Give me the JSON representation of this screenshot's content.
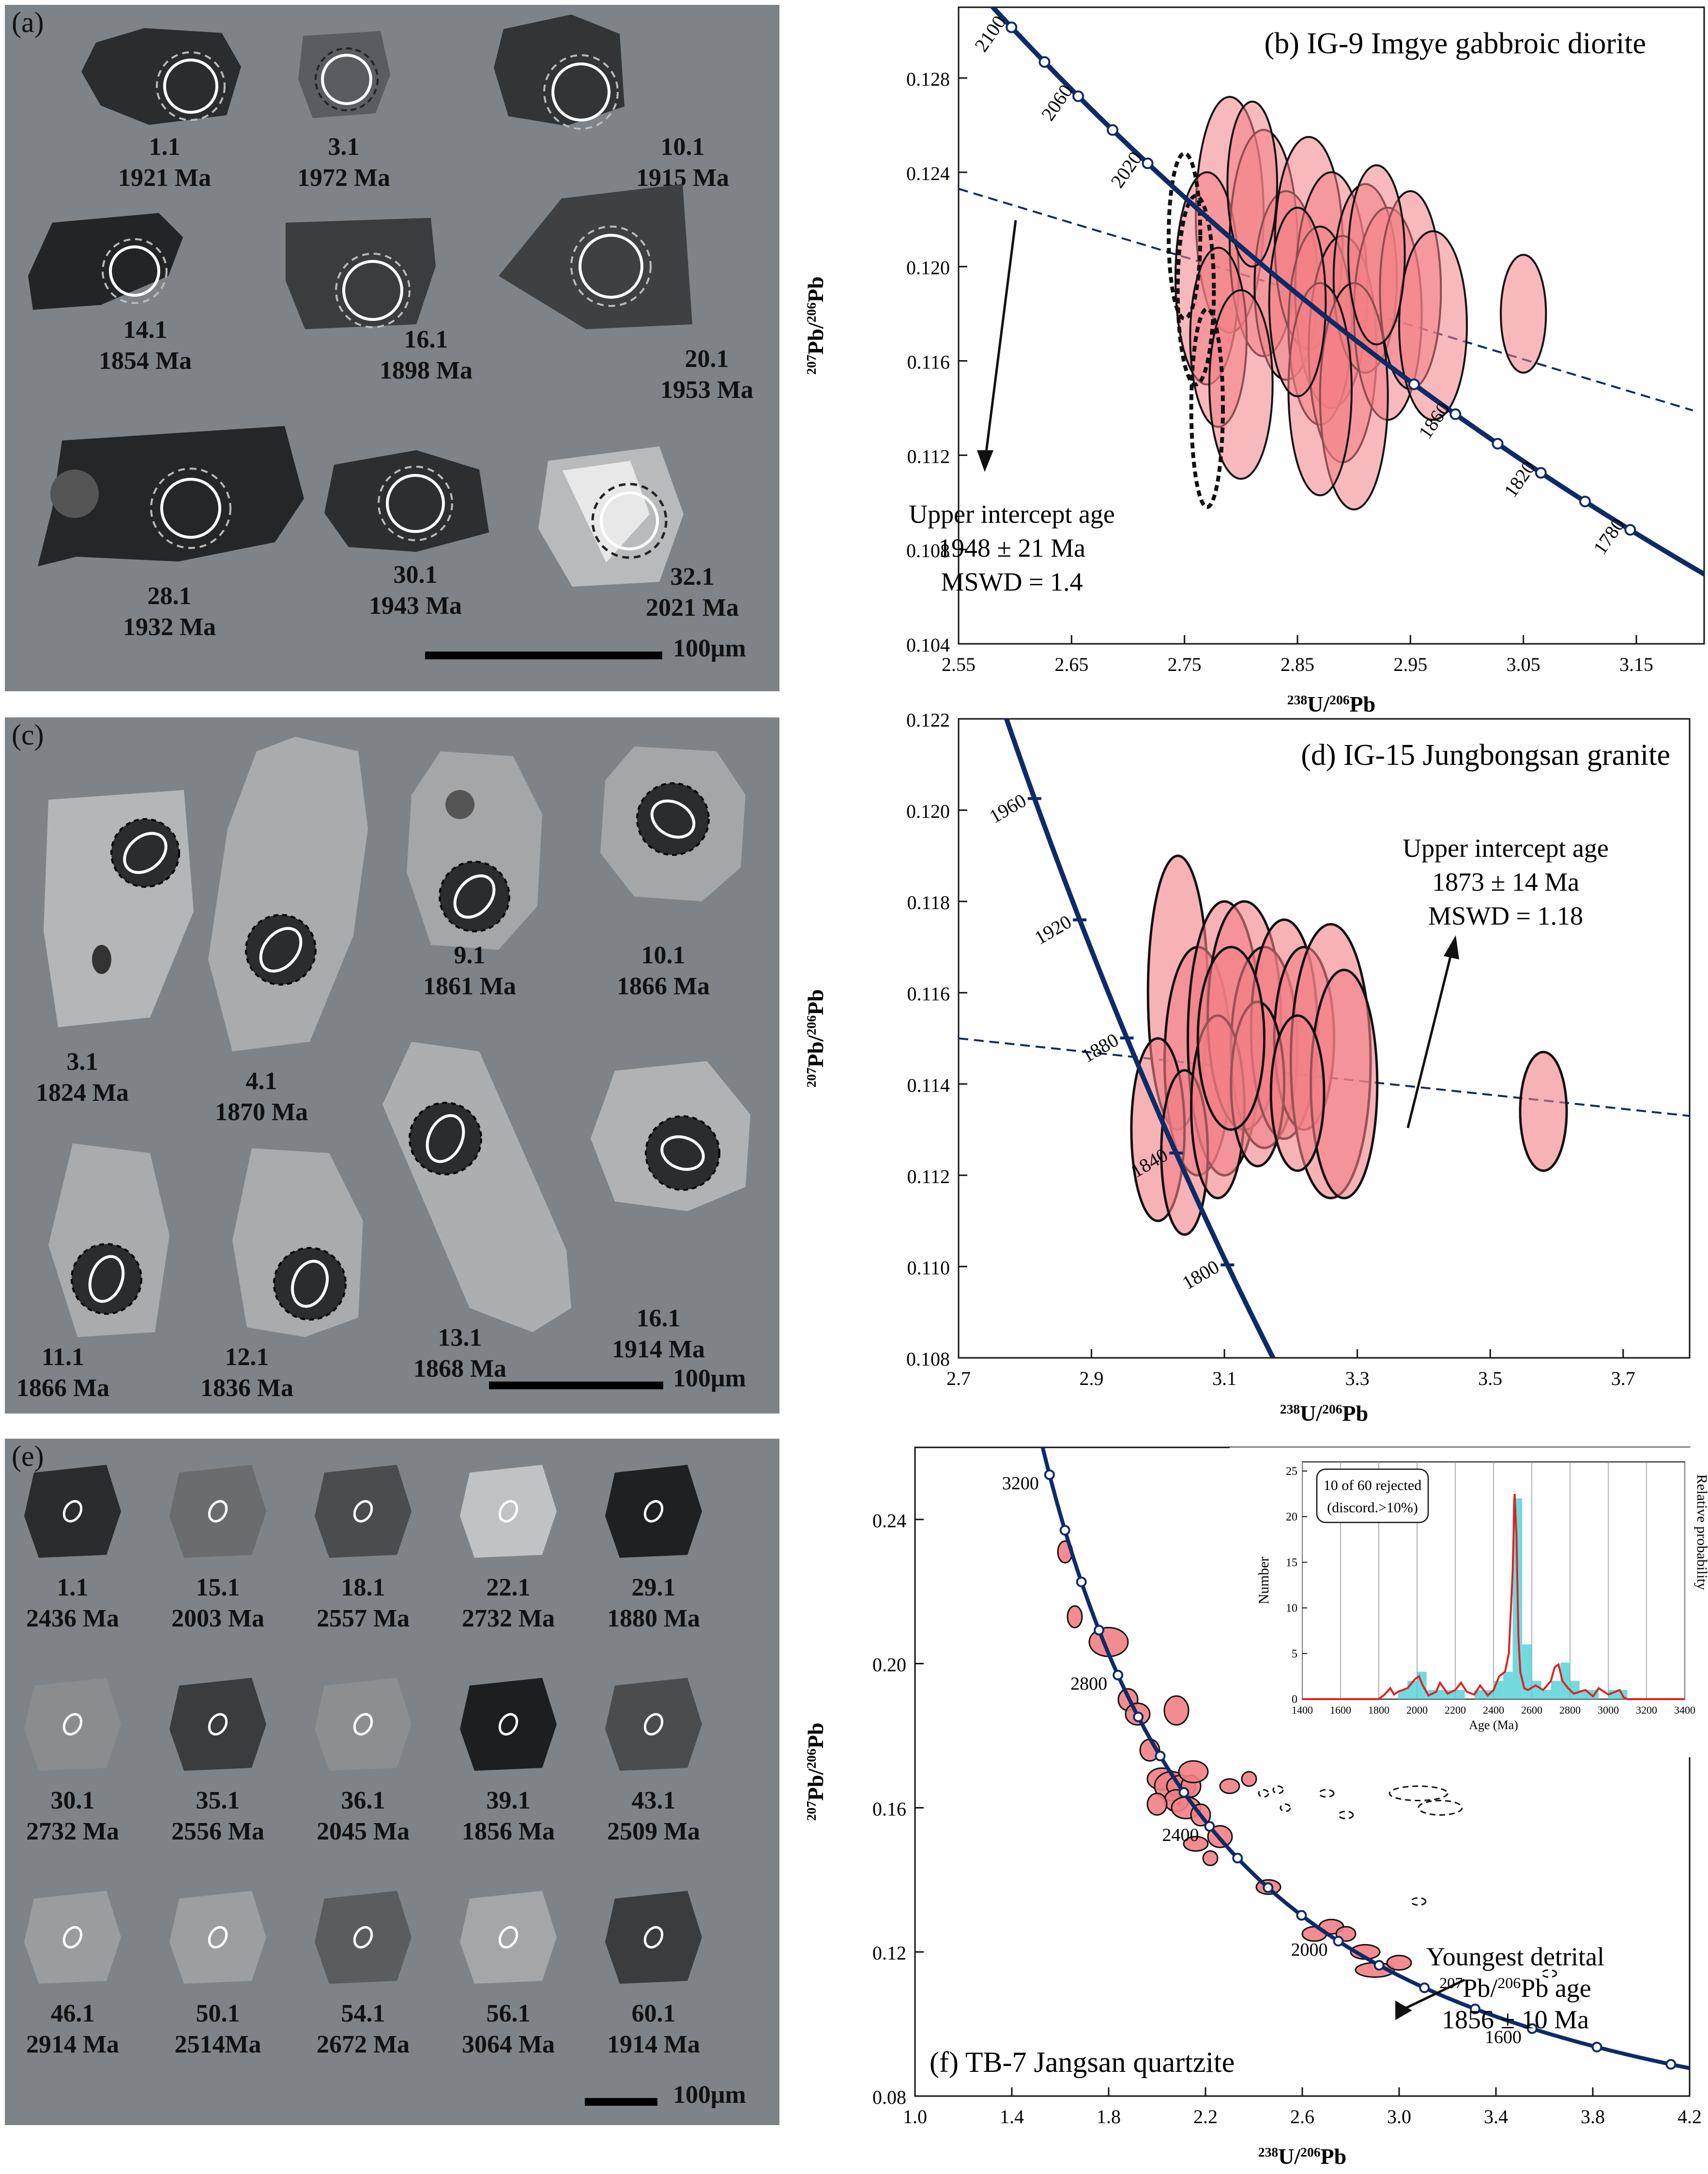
{
  "colors": {
    "curve": "#0d2b66",
    "ellipse_fill": "#f27f85",
    "ellipse_stroke": "#111111",
    "panel_bg": "#7d8386",
    "hist_bar": "#4fd0d6",
    "hist_line": "#e02020"
  },
  "panel_a": {
    "tag": "(a)",
    "scale": "100μm",
    "grains": [
      {
        "id": "1.1",
        "age": "1921 Ma"
      },
      {
        "id": "3.1",
        "age": "1972 Ma"
      },
      {
        "id": "10.1",
        "age": "1915 Ma"
      },
      {
        "id": "14.1",
        "age": "1854 Ma"
      },
      {
        "id": "16.1",
        "age": "1898 Ma"
      },
      {
        "id": "20.1",
        "age": "1953 Ma"
      },
      {
        "id": "28.1",
        "age": "1932 Ma"
      },
      {
        "id": "30.1",
        "age": "1943 Ma"
      },
      {
        "id": "32.1",
        "age": "2021 Ma"
      }
    ]
  },
  "panel_c": {
    "tag": "(c)",
    "scale": "100μm",
    "grains": [
      {
        "id": "3.1",
        "age": "1824  Ma"
      },
      {
        "id": "4.1",
        "age": "1870 Ma"
      },
      {
        "id": "9.1",
        "age": "1861 Ma"
      },
      {
        "id": "10.1",
        "age": "1866 Ma"
      },
      {
        "id": "11.1",
        "age": "1866 Ma"
      },
      {
        "id": "12.1",
        "age": "1836 Ma"
      },
      {
        "id": "13.1",
        "age": "1868 Ma"
      },
      {
        "id": "16.1",
        "age": "1914  Ma"
      }
    ]
  },
  "panel_e": {
    "tag": "(e)",
    "scale": "100μm",
    "grains": [
      {
        "id": "1.1",
        "age": "2436 Ma"
      },
      {
        "id": "15.1",
        "age": "2003 Ma"
      },
      {
        "id": "18.1",
        "age": "2557 Ma"
      },
      {
        "id": "22.1",
        "age": "2732 Ma"
      },
      {
        "id": "29.1",
        "age": "1880 Ma"
      },
      {
        "id": "30.1",
        "age": "2732 Ma"
      },
      {
        "id": "35.1",
        "age": "2556 Ma"
      },
      {
        "id": "36.1",
        "age": "2045 Ma"
      },
      {
        "id": "39.1",
        "age": "1856 Ma"
      },
      {
        "id": "43.1",
        "age": "2509 Ma"
      },
      {
        "id": "46.1",
        "age": "2914 Ma"
      },
      {
        "id": "50.1",
        "age": "2514Ma"
      },
      {
        "id": "54.1",
        "age": "2672 Ma"
      },
      {
        "id": "56.1",
        "age": "3064 Ma"
      },
      {
        "id": "60.1",
        "age": "1914 Ma"
      }
    ]
  },
  "chart_data": [
    {
      "type": "scatter",
      "panel": "b",
      "title": "(b) IG-9 Imgye gabbroic diorite",
      "xlabel": "238U/206Pb",
      "ylabel": "207Pb/206Pb",
      "xlim": [
        2.55,
        3.21
      ],
      "ylim": [
        0.104,
        0.131
      ],
      "xticks": [
        "2.55",
        "2.65",
        "2.75",
        "2.85",
        "2.95",
        "3.05",
        "3.15"
      ],
      "yticks": [
        "0.104",
        "0.108",
        "0.112",
        "0.116",
        "0.120",
        "0.124",
        "0.128"
      ],
      "concordia_ages": [
        "2100",
        "2060",
        "2020",
        "1860",
        "1820",
        "1780"
      ],
      "concordia_age_values": [
        2100,
        2080,
        2060,
        2040,
        2020,
        1880,
        1860,
        1840,
        1820,
        1800,
        1780
      ],
      "discordia": {
        "x": [
          2.55,
          3.2
        ],
        "y": [
          0.1233,
          0.1139
        ]
      },
      "annotation": {
        "line1": "Upper intercept age",
        "line2": "1948 ± 21 Ma",
        "line3": "MSWD = 1.4"
      },
      "points": [
        [
          2.79,
          0.1222,
          0.03,
          0.005
        ],
        [
          2.77,
          0.1195,
          0.028,
          0.0045
        ],
        [
          2.82,
          0.121,
          0.03,
          0.0048
        ],
        [
          2.84,
          0.1192,
          0.028,
          0.004
        ],
        [
          2.86,
          0.121,
          0.03,
          0.0045
        ],
        [
          2.88,
          0.119,
          0.032,
          0.005
        ],
        [
          2.87,
          0.1175,
          0.028,
          0.0042
        ],
        [
          2.89,
          0.1165,
          0.03,
          0.0048
        ],
        [
          2.91,
          0.1195,
          0.028,
          0.004
        ],
        [
          2.93,
          0.118,
          0.03,
          0.0045
        ],
        [
          2.95,
          0.119,
          0.027,
          0.0042
        ],
        [
          2.97,
          0.1175,
          0.03,
          0.004
        ],
        [
          2.78,
          0.117,
          0.025,
          0.0038
        ],
        [
          2.8,
          0.115,
          0.028,
          0.004
        ],
        [
          2.9,
          0.1145,
          0.03,
          0.0048
        ],
        [
          2.87,
          0.1148,
          0.028,
          0.0045
        ],
        [
          3.05,
          0.118,
          0.02,
          0.0025
        ],
        [
          2.85,
          0.1185,
          0.025,
          0.004
        ],
        [
          2.92,
          0.1205,
          0.025,
          0.0038
        ],
        [
          2.81,
          0.1235,
          0.022,
          0.0035
        ]
      ],
      "rejected": [
        [
          2.75,
          0.1213,
          0.014,
          0.0035
        ],
        [
          2.76,
          0.119,
          0.016,
          0.004
        ],
        [
          2.77,
          0.114,
          0.014,
          0.0042
        ]
      ]
    },
    {
      "type": "scatter",
      "panel": "d",
      "title": "(d) IG-15 Jungbongsan granite",
      "xlabel": "238U/206Pb",
      "ylabel": "207Pb/206Pb",
      "xlim": [
        2.7,
        3.8
      ],
      "ylim": [
        0.108,
        0.122
      ],
      "xticks": [
        "2.7",
        "2.9",
        "3.1",
        "3.3",
        "3.5",
        "3.7"
      ],
      "yticks": [
        "0.108",
        "0.110",
        "0.112",
        "0.114",
        "0.116",
        "0.118",
        "0.120",
        "0.122"
      ],
      "concordia_ages": [
        "1960",
        "1920",
        "1880",
        "1840",
        "1800"
      ],
      "concordia_age_values": [
        1960,
        1920,
        1880,
        1840,
        1800
      ],
      "discordia": {
        "x": [
          2.7,
          3.8
        ],
        "y": [
          0.115,
          0.1133
        ]
      },
      "annotation": {
        "line1": "Upper intercept age",
        "line2": "1873 ± 14 Ma",
        "line3": "MSWD = 1.18"
      },
      "points": [
        [
          3.03,
          0.116,
          0.045,
          0.003
        ],
        [
          3.06,
          0.1145,
          0.05,
          0.0025
        ],
        [
          3.1,
          0.115,
          0.055,
          0.003
        ],
        [
          3.13,
          0.1155,
          0.055,
          0.0025
        ],
        [
          3.16,
          0.1148,
          0.05,
          0.0022
        ],
        [
          3.19,
          0.1152,
          0.05,
          0.0024
        ],
        [
          3.22,
          0.115,
          0.045,
          0.002
        ],
        [
          3.26,
          0.1145,
          0.06,
          0.003
        ],
        [
          3.28,
          0.114,
          0.05,
          0.0025
        ],
        [
          3.0,
          0.113,
          0.04,
          0.002
        ],
        [
          3.04,
          0.1125,
          0.035,
          0.0018
        ],
        [
          3.09,
          0.1135,
          0.04,
          0.002
        ],
        [
          3.58,
          0.1134,
          0.035,
          0.0013
        ],
        [
          3.15,
          0.114,
          0.04,
          0.0018
        ],
        [
          3.21,
          0.1138,
          0.04,
          0.0017
        ],
        [
          3.11,
          0.115,
          0.05,
          0.002
        ]
      ]
    },
    {
      "type": "scatter",
      "panel": "f",
      "title": "(f) TB-7 Jangsan quartzite",
      "xlabel": "238U/206Pb",
      "ylabel": "207Pb/206Pb",
      "xlim": [
        1.0,
        4.2
      ],
      "ylim": [
        0.08,
        0.26
      ],
      "xticks": [
        "1.0",
        "1.4",
        "1.8",
        "2.2",
        "2.6",
        "3.0",
        "3.4",
        "3.8",
        "4.2"
      ],
      "yticks": [
        "0.08",
        "0.12",
        "0.16",
        "0.20",
        "0.24"
      ],
      "concordia_ages": [
        "3200",
        "2800",
        "2400",
        "2000",
        "1600"
      ],
      "concordia_age_values": [
        3300,
        3200,
        3100,
        3000,
        2900,
        2800,
        2700,
        2600,
        2500,
        2400,
        2300,
        2200,
        2100,
        2000,
        1900,
        1800,
        1700,
        1600,
        1500,
        1400
      ],
      "annotation": {
        "line1": "Youngest  detrital",
        "line2": "207Pb/206Pb age",
        "line3": "1856 ± 10 Ma"
      },
      "points": [
        [
          1.62,
          0.231,
          0.03,
          0.003
        ],
        [
          1.66,
          0.213,
          0.03,
          0.003
        ],
        [
          1.8,
          0.206,
          0.08,
          0.004
        ],
        [
          1.88,
          0.19,
          0.04,
          0.003
        ],
        [
          1.92,
          0.186,
          0.05,
          0.003
        ],
        [
          1.97,
          0.176,
          0.04,
          0.003
        ],
        [
          2.02,
          0.168,
          0.06,
          0.003
        ],
        [
          2.06,
          0.166,
          0.07,
          0.004
        ],
        [
          2.1,
          0.166,
          0.06,
          0.003
        ],
        [
          2.14,
          0.166,
          0.04,
          0.003
        ],
        [
          2.08,
          0.162,
          0.05,
          0.003
        ],
        [
          2.12,
          0.16,
          0.06,
          0.003
        ],
        [
          2.18,
          0.158,
          0.04,
          0.003
        ],
        [
          2.0,
          0.161,
          0.04,
          0.003
        ],
        [
          2.16,
          0.15,
          0.05,
          0.002
        ],
        [
          2.26,
          0.152,
          0.05,
          0.003
        ],
        [
          2.22,
          0.146,
          0.03,
          0.002
        ],
        [
          2.3,
          0.166,
          0.04,
          0.002
        ],
        [
          2.38,
          0.168,
          0.03,
          0.002
        ],
        [
          2.08,
          0.187,
          0.05,
          0.004
        ],
        [
          2.46,
          0.138,
          0.05,
          0.002
        ],
        [
          2.65,
          0.125,
          0.05,
          0.002
        ],
        [
          2.72,
          0.127,
          0.05,
          0.002
        ],
        [
          2.78,
          0.125,
          0.04,
          0.002
        ],
        [
          2.86,
          0.12,
          0.06,
          0.002
        ],
        [
          2.9,
          0.115,
          0.08,
          0.002
        ],
        [
          3.0,
          0.117,
          0.05,
          0.002
        ],
        [
          2.15,
          0.17,
          0.06,
          0.003
        ]
      ],
      "rejected": [
        [
          2.44,
          0.164,
          0.02,
          0.001
        ],
        [
          2.5,
          0.165,
          0.02,
          0.001
        ],
        [
          2.53,
          0.16,
          0.02,
          0.001
        ],
        [
          2.7,
          0.164,
          0.03,
          0.001
        ],
        [
          2.78,
          0.158,
          0.03,
          0.001
        ],
        [
          3.08,
          0.164,
          0.12,
          0.002
        ],
        [
          3.17,
          0.16,
          0.09,
          0.002
        ],
        [
          3.08,
          0.134,
          0.03,
          0.001
        ],
        [
          3.62,
          0.114,
          0.03,
          0.001
        ]
      ],
      "inset": {
        "type": "histogram",
        "note_line1": "10 of 60 rejected",
        "note_line2": "(discord.>10%)",
        "xlabel": "Age (Ma)",
        "ylabel": "Number",
        "y2label": "Relative probability",
        "xlim": [
          1400,
          3400
        ],
        "ylim": [
          0,
          26
        ],
        "xticks": [
          "1400",
          "1600",
          "1800",
          "2000",
          "2200",
          "2400",
          "2600",
          "2800",
          "3000",
          "3200",
          "3400"
        ],
        "yticks": [
          "0",
          "5",
          "10",
          "15",
          "20",
          "25"
        ],
        "bins": [
          1900,
          1950,
          2000,
          2050,
          2100,
          2150,
          2200,
          2250,
          2300,
          2350,
          2400,
          2450,
          2500,
          2550,
          2600,
          2650,
          2700,
          2750,
          2800,
          2850,
          2900,
          2950,
          3000,
          3050
        ],
        "counts": [
          1,
          2,
          3,
          1,
          1,
          1,
          1,
          0,
          1,
          1,
          2,
          3,
          22,
          6,
          2,
          1,
          2,
          4,
          2,
          1,
          1,
          0,
          1,
          1
        ],
        "density_x": [
          1400,
          1800,
          1830,
          1860,
          1880,
          1900,
          1950,
          1990,
          2010,
          2030,
          2060,
          2100,
          2120,
          2160,
          2200,
          2230,
          2260,
          2300,
          2330,
          2370,
          2400,
          2430,
          2460,
          2480,
          2500,
          2510,
          2520,
          2530,
          2540,
          2560,
          2580,
          2620,
          2660,
          2700,
          2720,
          2740,
          2760,
          2790,
          2820,
          2880,
          2920,
          2950,
          3000,
          3060,
          3080,
          3100,
          3200,
          3400
        ],
        "density_y": [
          0,
          0,
          0.5,
          1.2,
          0.5,
          0.8,
          1.2,
          2.2,
          2.5,
          1.5,
          0.4,
          0.8,
          1.8,
          0.6,
          1.0,
          1.8,
          0.8,
          0.5,
          1.5,
          0.4,
          1.0,
          2.5,
          3.0,
          5,
          14,
          22.5,
          18,
          7,
          3,
          1.2,
          1.0,
          1.5,
          1.0,
          2.0,
          3.5,
          3.8,
          2.0,
          1.2,
          0.6,
          1.0,
          0.3,
          1.2,
          0.5,
          1.0,
          0.2,
          0,
          0,
          0
        ]
      }
    }
  ]
}
